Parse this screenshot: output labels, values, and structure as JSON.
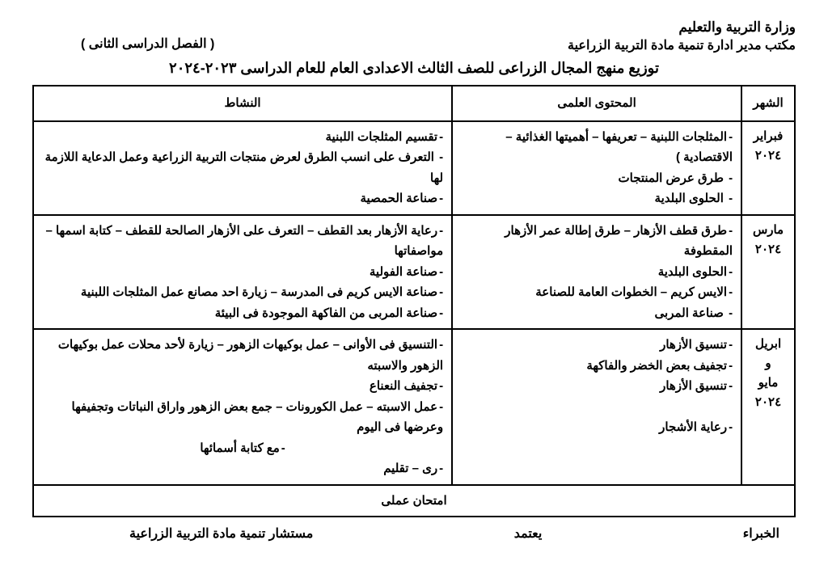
{
  "header": {
    "ministry": "وزارة التربية والتعليم",
    "office": "مكتب مدير ادارة تنمية مادة التربية الزراعية",
    "semester": "( الفصل الدراسى الثانى )",
    "title": "توزيع منهج المجال الزراعى للصف الثالث الاعدادى العام للعام الدراسى ٢٠٢٣-٢٠٢٤"
  },
  "table": {
    "headers": {
      "month": "الشهر",
      "content": "المحتوى العلمى",
      "activity": "النشاط"
    },
    "rows": [
      {
        "month": "فبراير ٢٠٢٤",
        "content": [
          "المثلجات اللبنية – تعريفها – أهميتها الغذائية – الاقتصادية )",
          " طرق عرض المنتجات",
          " الحلوى البلدية"
        ],
        "activity": [
          "تقسيم المثلجات اللبنية",
          " التعرف على انسب الطرق لعرض منتجات التربية الزراعية وعمل الدعاية اللازمة لها",
          "صناعة الحمصية"
        ]
      },
      {
        "month": "مارس ٢٠٢٤",
        "content": [
          "طرق قطف الأزهار – طرق إطالة عمر الأزهار المقطوفة",
          "الحلوى البلدية",
          "الايس كريم – الخطوات العامة للصناعة",
          " صناعة المربى"
        ],
        "activity": [
          "رعاية الأزهار بعد القطف – التعرف على الأزهار الصالحة للقطف – كتابة اسمها – مواصفاتها",
          "صناعة الفولية",
          "صناعة الايس كريم فى المدرسة – زيارة احد مصانع عمل المثلجات اللبنية",
          "صناعة المربى من الفاكهة الموجودة فى البيئة"
        ]
      },
      {
        "month": "ابريل و مايو ٢٠٢٤",
        "content": [
          "تنسيق الأزهار",
          "تجفيف بعض الخضر والفاكهة",
          "تنسيق الأزهار",
          "",
          "رعاية الأشجار"
        ],
        "activity": [
          "التنسيق فى الأوانى – عمل بوكيهات الزهور – زيارة لأحد محلات عمل بوكيهات الزهور والاسبته",
          "تجفيف النعناع",
          "عمل الاسبته – عمل الكورونات – جمع بعض الزهور واراق النباتات وتجفيفها وعرضها فى اليوم",
          "مع كتابة أسمائها",
          "رى – تقليم"
        ]
      }
    ],
    "exam": "امتحان عملى"
  },
  "footer": {
    "experts": "الخبراء",
    "approve": "يعتمد",
    "counselor": "مستشار تنمية مادة التربية الزراعية"
  },
  "style": {
    "text_color": "#000000",
    "background": "#ffffff",
    "border_color": "#000000",
    "font_weight_main": 700
  }
}
